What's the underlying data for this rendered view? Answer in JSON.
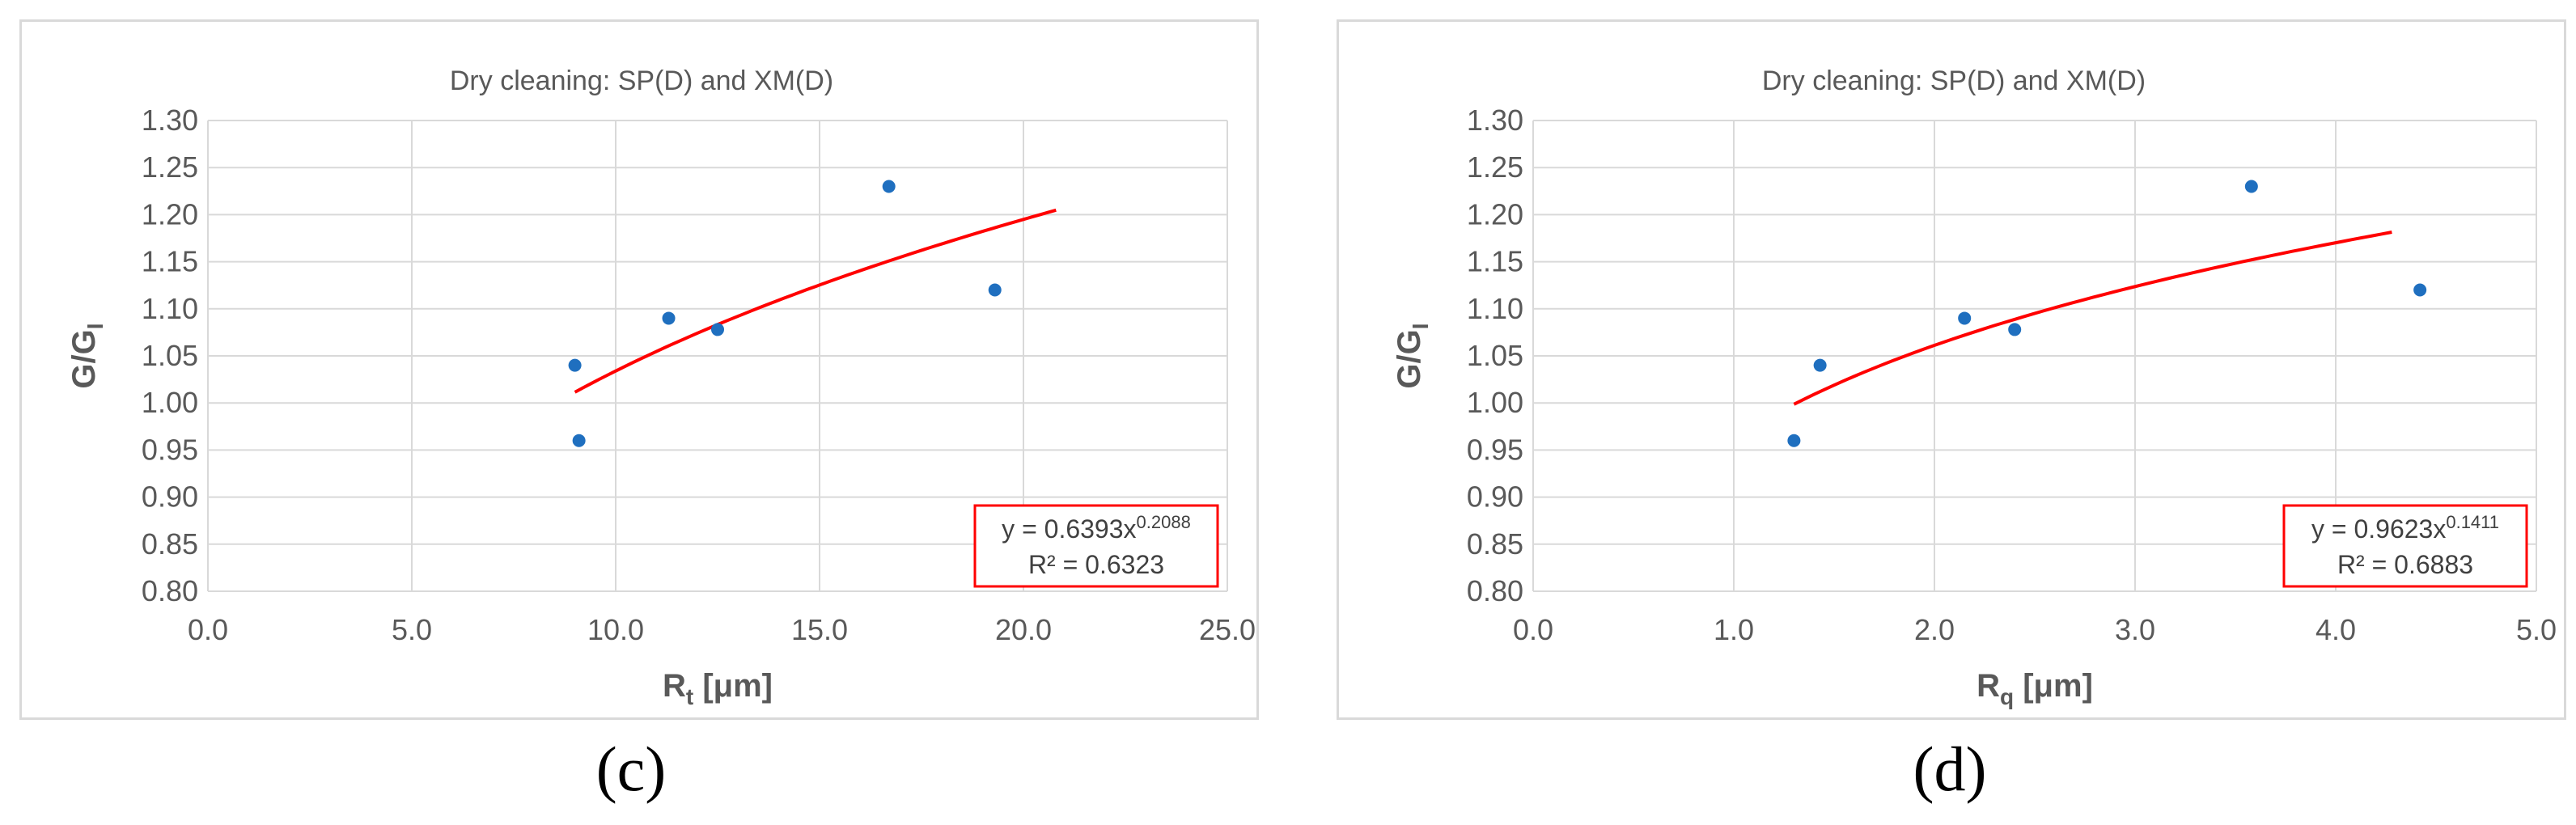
{
  "chart_data": [
    {
      "panel_label": "(c)",
      "type": "scatter",
      "title": "Dry cleaning: SP(D) and XM(D)",
      "xlabel_main": "R",
      "xlabel_sub": "t",
      "xlabel_unit": " [μm]",
      "ylabel_main": "G/G",
      "ylabel_sub": "I",
      "xlim": [
        0,
        25
      ],
      "ylim": [
        0.8,
        1.3
      ],
      "xticks": [
        0,
        5,
        10,
        15,
        20,
        25
      ],
      "yticks": [
        0.8,
        0.85,
        0.9,
        0.95,
        1.0,
        1.05,
        1.1,
        1.15,
        1.2,
        1.25,
        1.3
      ],
      "x_tick_labels": [
        "0.0",
        "5.0",
        "10.0",
        "15.0",
        "20.0",
        "25.0"
      ],
      "y_tick_labels": [
        "0.80",
        "0.85",
        "0.90",
        "0.95",
        "1.00",
        "1.05",
        "1.10",
        "1.15",
        "1.20",
        "1.25",
        "1.30"
      ],
      "grid": true,
      "points": [
        {
          "x": 9.0,
          "y": 1.04
        },
        {
          "x": 9.1,
          "y": 0.96
        },
        {
          "x": 11.3,
          "y": 1.09
        },
        {
          "x": 12.5,
          "y": 1.078
        },
        {
          "x": 16.7,
          "y": 1.23
        },
        {
          "x": 19.3,
          "y": 1.12
        }
      ],
      "point_color": "#1f6fbf",
      "trendline": {
        "type": "power",
        "a": 0.6393,
        "b": 0.2088,
        "x_range": [
          9.0,
          20.8
        ],
        "color": "#ff0000"
      },
      "equation_text": "y = 0.6393x",
      "equation_exponent": "0.2088",
      "r2_text": "R² = 0.6323",
      "annotation_position": "bottom-right"
    },
    {
      "panel_label": "(d)",
      "type": "scatter",
      "title": "Dry cleaning: SP(D) and XM(D)",
      "xlabel_main": "R",
      "xlabel_sub": "q",
      "xlabel_unit": " [μm]",
      "ylabel_main": "G/G",
      "ylabel_sub": "I",
      "xlim": [
        0,
        5
      ],
      "ylim": [
        0.8,
        1.3
      ],
      "xticks": [
        0,
        1,
        2,
        3,
        4,
        5
      ],
      "yticks": [
        0.8,
        0.85,
        0.9,
        0.95,
        1.0,
        1.05,
        1.1,
        1.15,
        1.2,
        1.25,
        1.3
      ],
      "x_tick_labels": [
        "0.0",
        "1.0",
        "2.0",
        "3.0",
        "4.0",
        "5.0"
      ],
      "y_tick_labels": [
        "0.80",
        "0.85",
        "0.90",
        "0.95",
        "1.00",
        "1.05",
        "1.10",
        "1.15",
        "1.20",
        "1.25",
        "1.30"
      ],
      "grid": true,
      "points": [
        {
          "x": 1.3,
          "y": 0.96
        },
        {
          "x": 1.43,
          "y": 1.04
        },
        {
          "x": 2.15,
          "y": 1.09
        },
        {
          "x": 2.4,
          "y": 1.078
        },
        {
          "x": 3.58,
          "y": 1.23
        },
        {
          "x": 4.42,
          "y": 1.12
        }
      ],
      "point_color": "#1f6fbf",
      "trendline": {
        "type": "power",
        "a": 0.9623,
        "b": 0.1411,
        "x_range": [
          1.3,
          4.28
        ],
        "color": "#ff0000"
      },
      "equation_text": "y = 0.9623x",
      "equation_exponent": "0.1411",
      "r2_text": "R² = 0.6883",
      "annotation_position": "bottom-right"
    }
  ]
}
